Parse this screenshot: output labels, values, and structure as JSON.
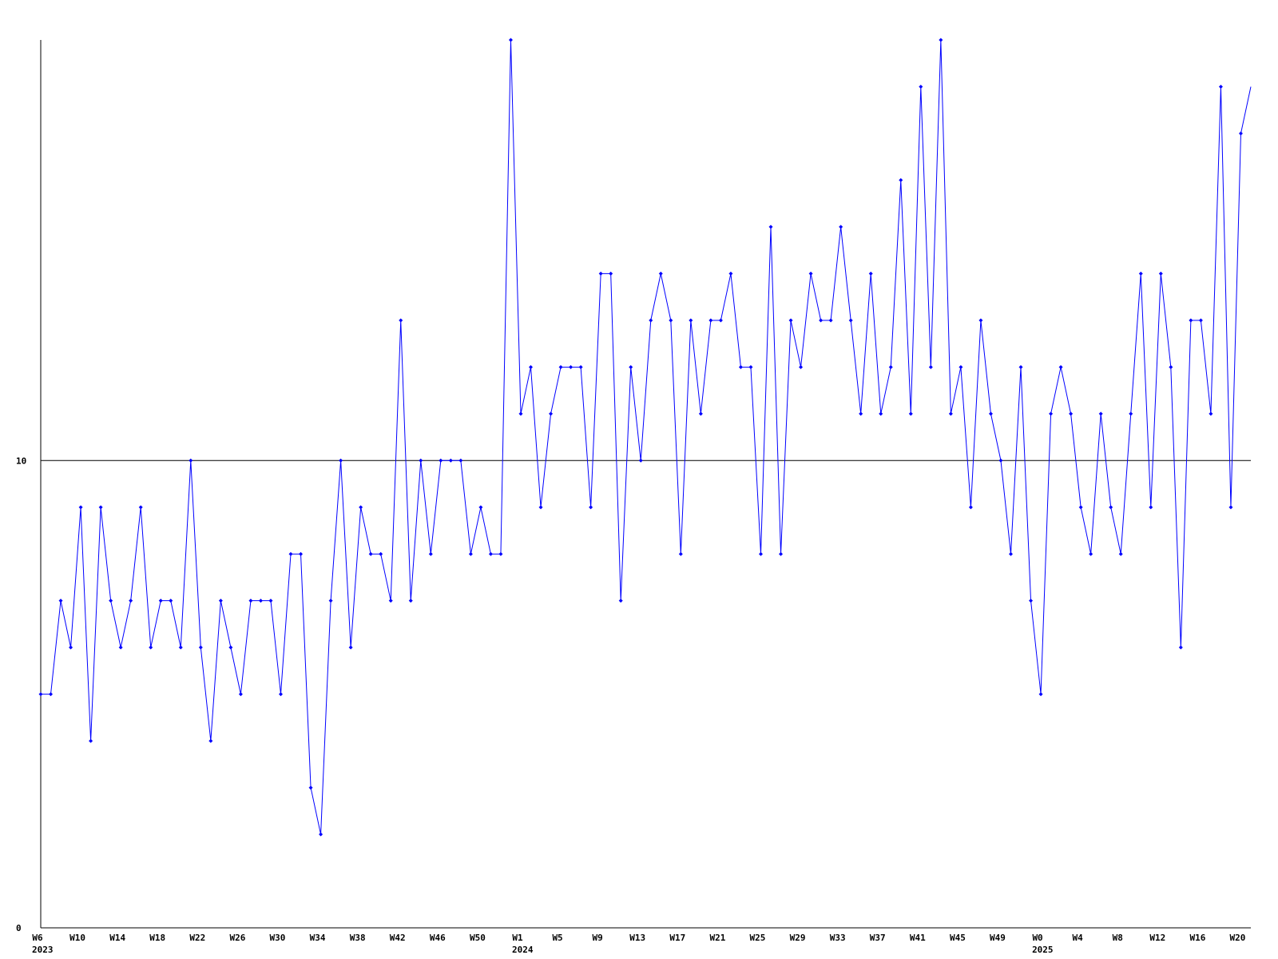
{
  "chart_data": {
    "type": "line",
    "categories": [
      "W6",
      null,
      null,
      null,
      "W10",
      null,
      null,
      null,
      "W14",
      null,
      null,
      null,
      "W18",
      null,
      null,
      null,
      "W22",
      null,
      null,
      null,
      "W26",
      null,
      null,
      null,
      "W30",
      null,
      null,
      null,
      "W34",
      null,
      null,
      null,
      "W38",
      null,
      null,
      null,
      "W42",
      null,
      null,
      null,
      "W46",
      null,
      null,
      null,
      "W50",
      null,
      null,
      null,
      "W1",
      null,
      null,
      null,
      "W5",
      null,
      null,
      null,
      "W9",
      null,
      null,
      null,
      "W13",
      null,
      null,
      null,
      "W17",
      null,
      null,
      null,
      "W21",
      null,
      null,
      null,
      "W25",
      null,
      null,
      null,
      "W29",
      null,
      null,
      null,
      "W33",
      null,
      null,
      null,
      "W37",
      null,
      null,
      null,
      "W41",
      null,
      null,
      null,
      "W45",
      null,
      null,
      null,
      "W49",
      null,
      null,
      null,
      "W0",
      null,
      null,
      null,
      "W4",
      null,
      null,
      null,
      "W8",
      null,
      null,
      null,
      "W12",
      null,
      null,
      null,
      "W16",
      null,
      null,
      null,
      "W20",
      null
    ],
    "year_labels": [
      {
        "index": 0,
        "label": "2023"
      },
      {
        "index": 48,
        "label": "2024"
      },
      {
        "index": 100,
        "label": "2025"
      }
    ],
    "series": [
      {
        "color": "#0000ff",
        "values": [
          5,
          5,
          7,
          6,
          9,
          4,
          9,
          7,
          6,
          7,
          9,
          6,
          7,
          7,
          6,
          10,
          6,
          4,
          7,
          6,
          5,
          7,
          7,
          7,
          5,
          8,
          8,
          3,
          2,
          7,
          10,
          6,
          9,
          8,
          8,
          7,
          13,
          7,
          10,
          8,
          10,
          10,
          10,
          8,
          9,
          8,
          8,
          19,
          11,
          12,
          9,
          11,
          12,
          12,
          12,
          9,
          14,
          14,
          7,
          12,
          10,
          13,
          14,
          13,
          8,
          13,
          11,
          13,
          13,
          14,
          12,
          12,
          8,
          15,
          8,
          13,
          12,
          14,
          13,
          13,
          15,
          13,
          11,
          14,
          11,
          12,
          16,
          11,
          18,
          12,
          19,
          11,
          12,
          9,
          13,
          11,
          10,
          8,
          12,
          7,
          5,
          11,
          12,
          11,
          9,
          8,
          11,
          9,
          8,
          11,
          14,
          9,
          14,
          12,
          6,
          13,
          13,
          11,
          18,
          9,
          17,
          18
        ]
      }
    ],
    "ylim": [
      0,
      19
    ],
    "yticks": [
      0,
      10
    ],
    "grid": true
  }
}
